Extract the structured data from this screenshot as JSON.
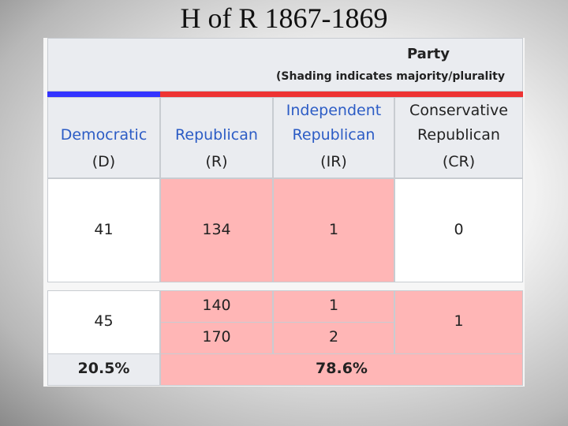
{
  "title": "H of R 1867-1869",
  "table": {
    "header": {
      "group": "Party",
      "note": "(Shading indicates majority/plurality",
      "columns": [
        {
          "name": [
            "Democratic"
          ],
          "abbr": "(D)"
        },
        {
          "name": [
            "Republican"
          ],
          "abbr": "(R)"
        },
        {
          "name": [
            "Independent",
            "Republican"
          ],
          "abbr": "(IR)"
        },
        {
          "name": [
            "Conservative",
            "Republican"
          ],
          "abbr": "(CR)"
        }
      ]
    },
    "rows": [
      [
        "41",
        "134",
        "1",
        "0"
      ],
      [
        "45",
        "140",
        "1",
        "1"
      ],
      [
        "170",
        "2"
      ]
    ],
    "totals": [
      "20.5%",
      "78.6%"
    ]
  }
}
